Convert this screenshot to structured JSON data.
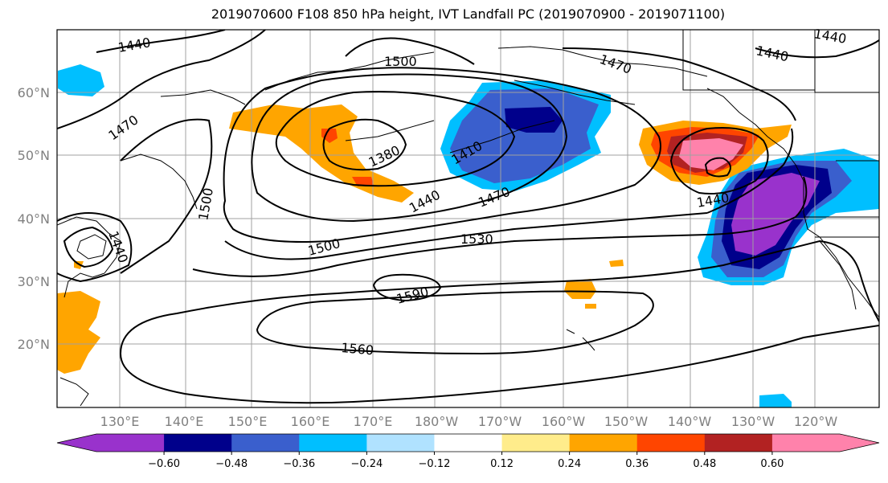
{
  "title": "2019070600 F108 850 hPa height, IVT Landfall PC (2019070900 - 2019071100)",
  "lat_labels": [
    "60°N",
    "50°N",
    "40°N",
    "30°N",
    "20°N"
  ],
  "lon_labels": [
    "130°E",
    "140°E",
    "150°E",
    "160°E",
    "170°E",
    "180°W",
    "170°W",
    "160°W",
    "150°W",
    "140°W",
    "130°W",
    "120°W"
  ],
  "contour_labels": [
    "1440",
    "1500",
    "1470",
    "1440",
    "1470",
    "1380",
    "1410",
    "1470",
    "1440",
    "1500",
    "1530",
    "1500",
    "1590",
    "1560",
    "1440",
    "1440",
    "1440"
  ],
  "colorbar": {
    "colors": [
      "#9932cc",
      "#00008b",
      "#3a5fcd",
      "#00bfff",
      "#b0e2ff",
      "#ffffff",
      "#ffec8b",
      "#ffa500",
      "#ff4500",
      "#b22222",
      "#ff82ab"
    ],
    "tick_labels": [
      "−0.60",
      "−0.48",
      "−0.36",
      "−0.24",
      "−0.12",
      "0.12",
      "0.24",
      "0.36",
      "0.48",
      "0.60"
    ]
  },
  "colors": {
    "neg_strong": "#9932cc",
    "neg_dark": "#00008b",
    "neg_mid": "#3a5fcd",
    "neg_light": "#00bfff",
    "neg_pale": "#b0e2ff",
    "pos_pale": "#ffec8b",
    "pos_light": "#ffa500",
    "pos_mid": "#ff4500",
    "pos_dark": "#b22222",
    "pos_strong": "#ff82ab"
  }
}
